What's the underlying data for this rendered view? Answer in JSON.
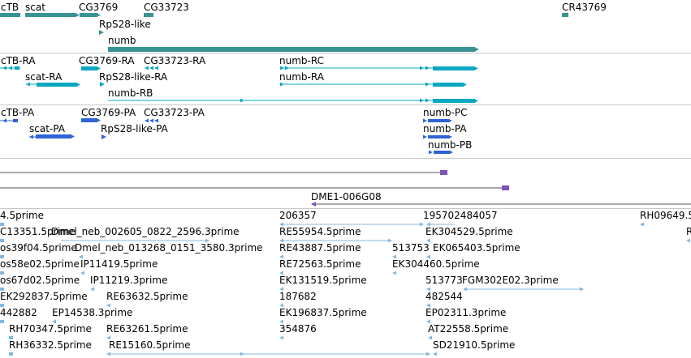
{
  "colors": {
    "gene": "#3a9393",
    "transcript": "#0aa7c2",
    "protein": "#2f63d6",
    "contig": "#7a52b8",
    "est": "#84b8e0",
    "separator": "#c8c8c8",
    "line": "#555555"
  },
  "tracks": {
    "genes": [
      {
        "label": "cTB"
      },
      {
        "label": "scat"
      },
      {
        "label": "CG3769"
      },
      {
        "label": "CG33723"
      },
      {
        "label": "CR43769"
      },
      {
        "label": "RpS28-like"
      },
      {
        "label": "numb"
      }
    ],
    "transcripts": [
      {
        "label": "cTB-RA"
      },
      {
        "label": "CG3769-RA"
      },
      {
        "label": "CG33723-RA"
      },
      {
        "label": "numb-RC"
      },
      {
        "label": "scat-RA"
      },
      {
        "label": "RpS28-like-RA"
      },
      {
        "label": "numb-RA"
      },
      {
        "label": "numb-RB"
      }
    ],
    "proteins": [
      {
        "label": "cTB-PA"
      },
      {
        "label": "CG3769-PA"
      },
      {
        "label": "CG33723-PA"
      },
      {
        "label": "numb-PC"
      },
      {
        "label": "scat-PA"
      },
      {
        "label": "RpS28-like-PA"
      },
      {
        "label": "numb-PA"
      },
      {
        "label": "numb-PB"
      }
    ],
    "contigs": [
      {
        "label": "DME1-006G08"
      }
    ],
    "ests": [
      {
        "label": "4.5prime"
      },
      {
        "label": "206357"
      },
      {
        "label": "195702484057"
      },
      {
        "label": "RH09649.5"
      },
      {
        "label": "C13351.5prime"
      },
      {
        "label": "Dmel_neb_002605_0822_2596.3prime"
      },
      {
        "label": "RE55954.5prime"
      },
      {
        "label": "EK304529.5prime"
      },
      {
        "label": "R"
      },
      {
        "label": "os39f04.5prime"
      },
      {
        "label": "Dmel_neb_013268_0151_3580.3prime"
      },
      {
        "label": "RE43887.5prime"
      },
      {
        "label": "513753"
      },
      {
        "label": "EK065403.5prime"
      },
      {
        "label": "os58e02.5prime"
      },
      {
        "label": "IP11419.5prime"
      },
      {
        "label": "RE72563.5prime"
      },
      {
        "label": "EK304460.5prime"
      },
      {
        "label": "os67d02.5prime"
      },
      {
        "label": "IP11219.3prime"
      },
      {
        "label": "EK131519.5prime"
      },
      {
        "label": "513773"
      },
      {
        "label": "FGM302E02.3prime"
      },
      {
        "label": "EK292837.5prime"
      },
      {
        "label": "RE63632.5prime"
      },
      {
        "label": "187682"
      },
      {
        "label": "482544"
      },
      {
        "label": "442882"
      },
      {
        "label": "EP14538.3prime"
      },
      {
        "label": "EK196837.5prime"
      },
      {
        "label": "EP02311.3prime"
      },
      {
        "label": "RH70347.5prime"
      },
      {
        "label": "RE63261.5prime"
      },
      {
        "label": "354876"
      },
      {
        "label": "AT22558.5prime"
      },
      {
        "label": "RH36332.5prime"
      },
      {
        "label": "RE15160.5prime"
      },
      {
        "label": "SD21910.5prime"
      }
    ]
  }
}
